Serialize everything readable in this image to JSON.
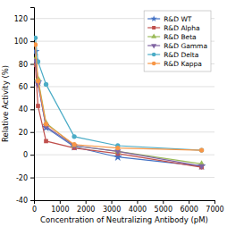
{
  "chart_data": {
    "type": "line",
    "xlabel": "Concentration of Neutralizing Antibody (pM)",
    "ylabel": "Relative Activity (%)",
    "x": [
      52,
      156,
      469,
      1563,
      3250,
      6500
    ],
    "series": [
      {
        "name": "R&D WT",
        "color": "#4472C4",
        "marker": "star",
        "values": [
          91,
          64,
          24,
          7,
          -2,
          -10
        ]
      },
      {
        "name": "R&D Alpha",
        "color": "#C0504D",
        "marker": "square",
        "values": [
          79,
          43,
          12,
          6,
          1,
          -11
        ]
      },
      {
        "name": "R&D Beta",
        "color": "#9BBB59",
        "marker": "triangle-up",
        "values": [
          84,
          67,
          28,
          8,
          3,
          -8
        ]
      },
      {
        "name": "R&D Gamma",
        "color": "#8064A2",
        "marker": "triangle-down",
        "values": [
          83,
          62,
          25,
          8,
          3,
          -10
        ]
      },
      {
        "name": "R&D Delta",
        "color": "#4BACC6",
        "marker": "circle",
        "values": [
          103,
          82,
          62,
          16,
          8,
          4
        ]
      },
      {
        "name": "R&D Kappa",
        "color": "#F79646",
        "marker": "circle",
        "values": [
          97,
          65,
          27,
          9,
          6,
          4
        ]
      }
    ],
    "xlim": [
      0,
      7000
    ],
    "xticks": [
      0,
      1000,
      2000,
      3000,
      4000,
      5000,
      6000,
      7000
    ],
    "ylim": [
      -40,
      130
    ],
    "yticks": [
      -40,
      -20,
      0,
      20,
      40,
      60,
      80,
      100,
      120
    ],
    "grid": "y",
    "legend": "upper right"
  }
}
